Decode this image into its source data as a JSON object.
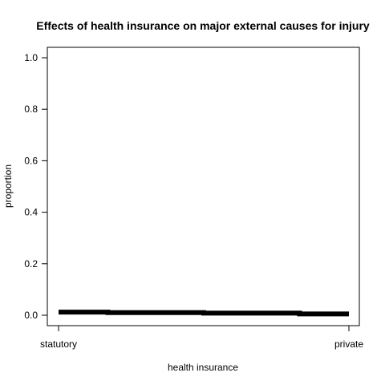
{
  "chart_data": {
    "type": "line",
    "title": "Effects of health insurance on major external causes for injury",
    "xlabel": "health insurance",
    "ylabel": "proportion",
    "categories": [
      "statutory",
      "private"
    ],
    "xlim": [
      0,
      1
    ],
    "ylim": [
      0,
      1
    ],
    "yticks": [
      "0.0",
      "0.2",
      "0.4",
      "0.6",
      "0.8",
      "1.0"
    ],
    "ytick_values": [
      0,
      0.2,
      0.4,
      0.6,
      0.8,
      1.0
    ],
    "grid": false,
    "series": [
      {
        "x": [
          0,
          0.17,
          0.17,
          0.5,
          0.5,
          0.83,
          0.83,
          1.0
        ],
        "values": [
          0.012,
          0.012,
          0.01,
          0.01,
          0.008,
          0.008,
          0.005,
          0.005
        ],
        "color": "#000000"
      }
    ]
  }
}
